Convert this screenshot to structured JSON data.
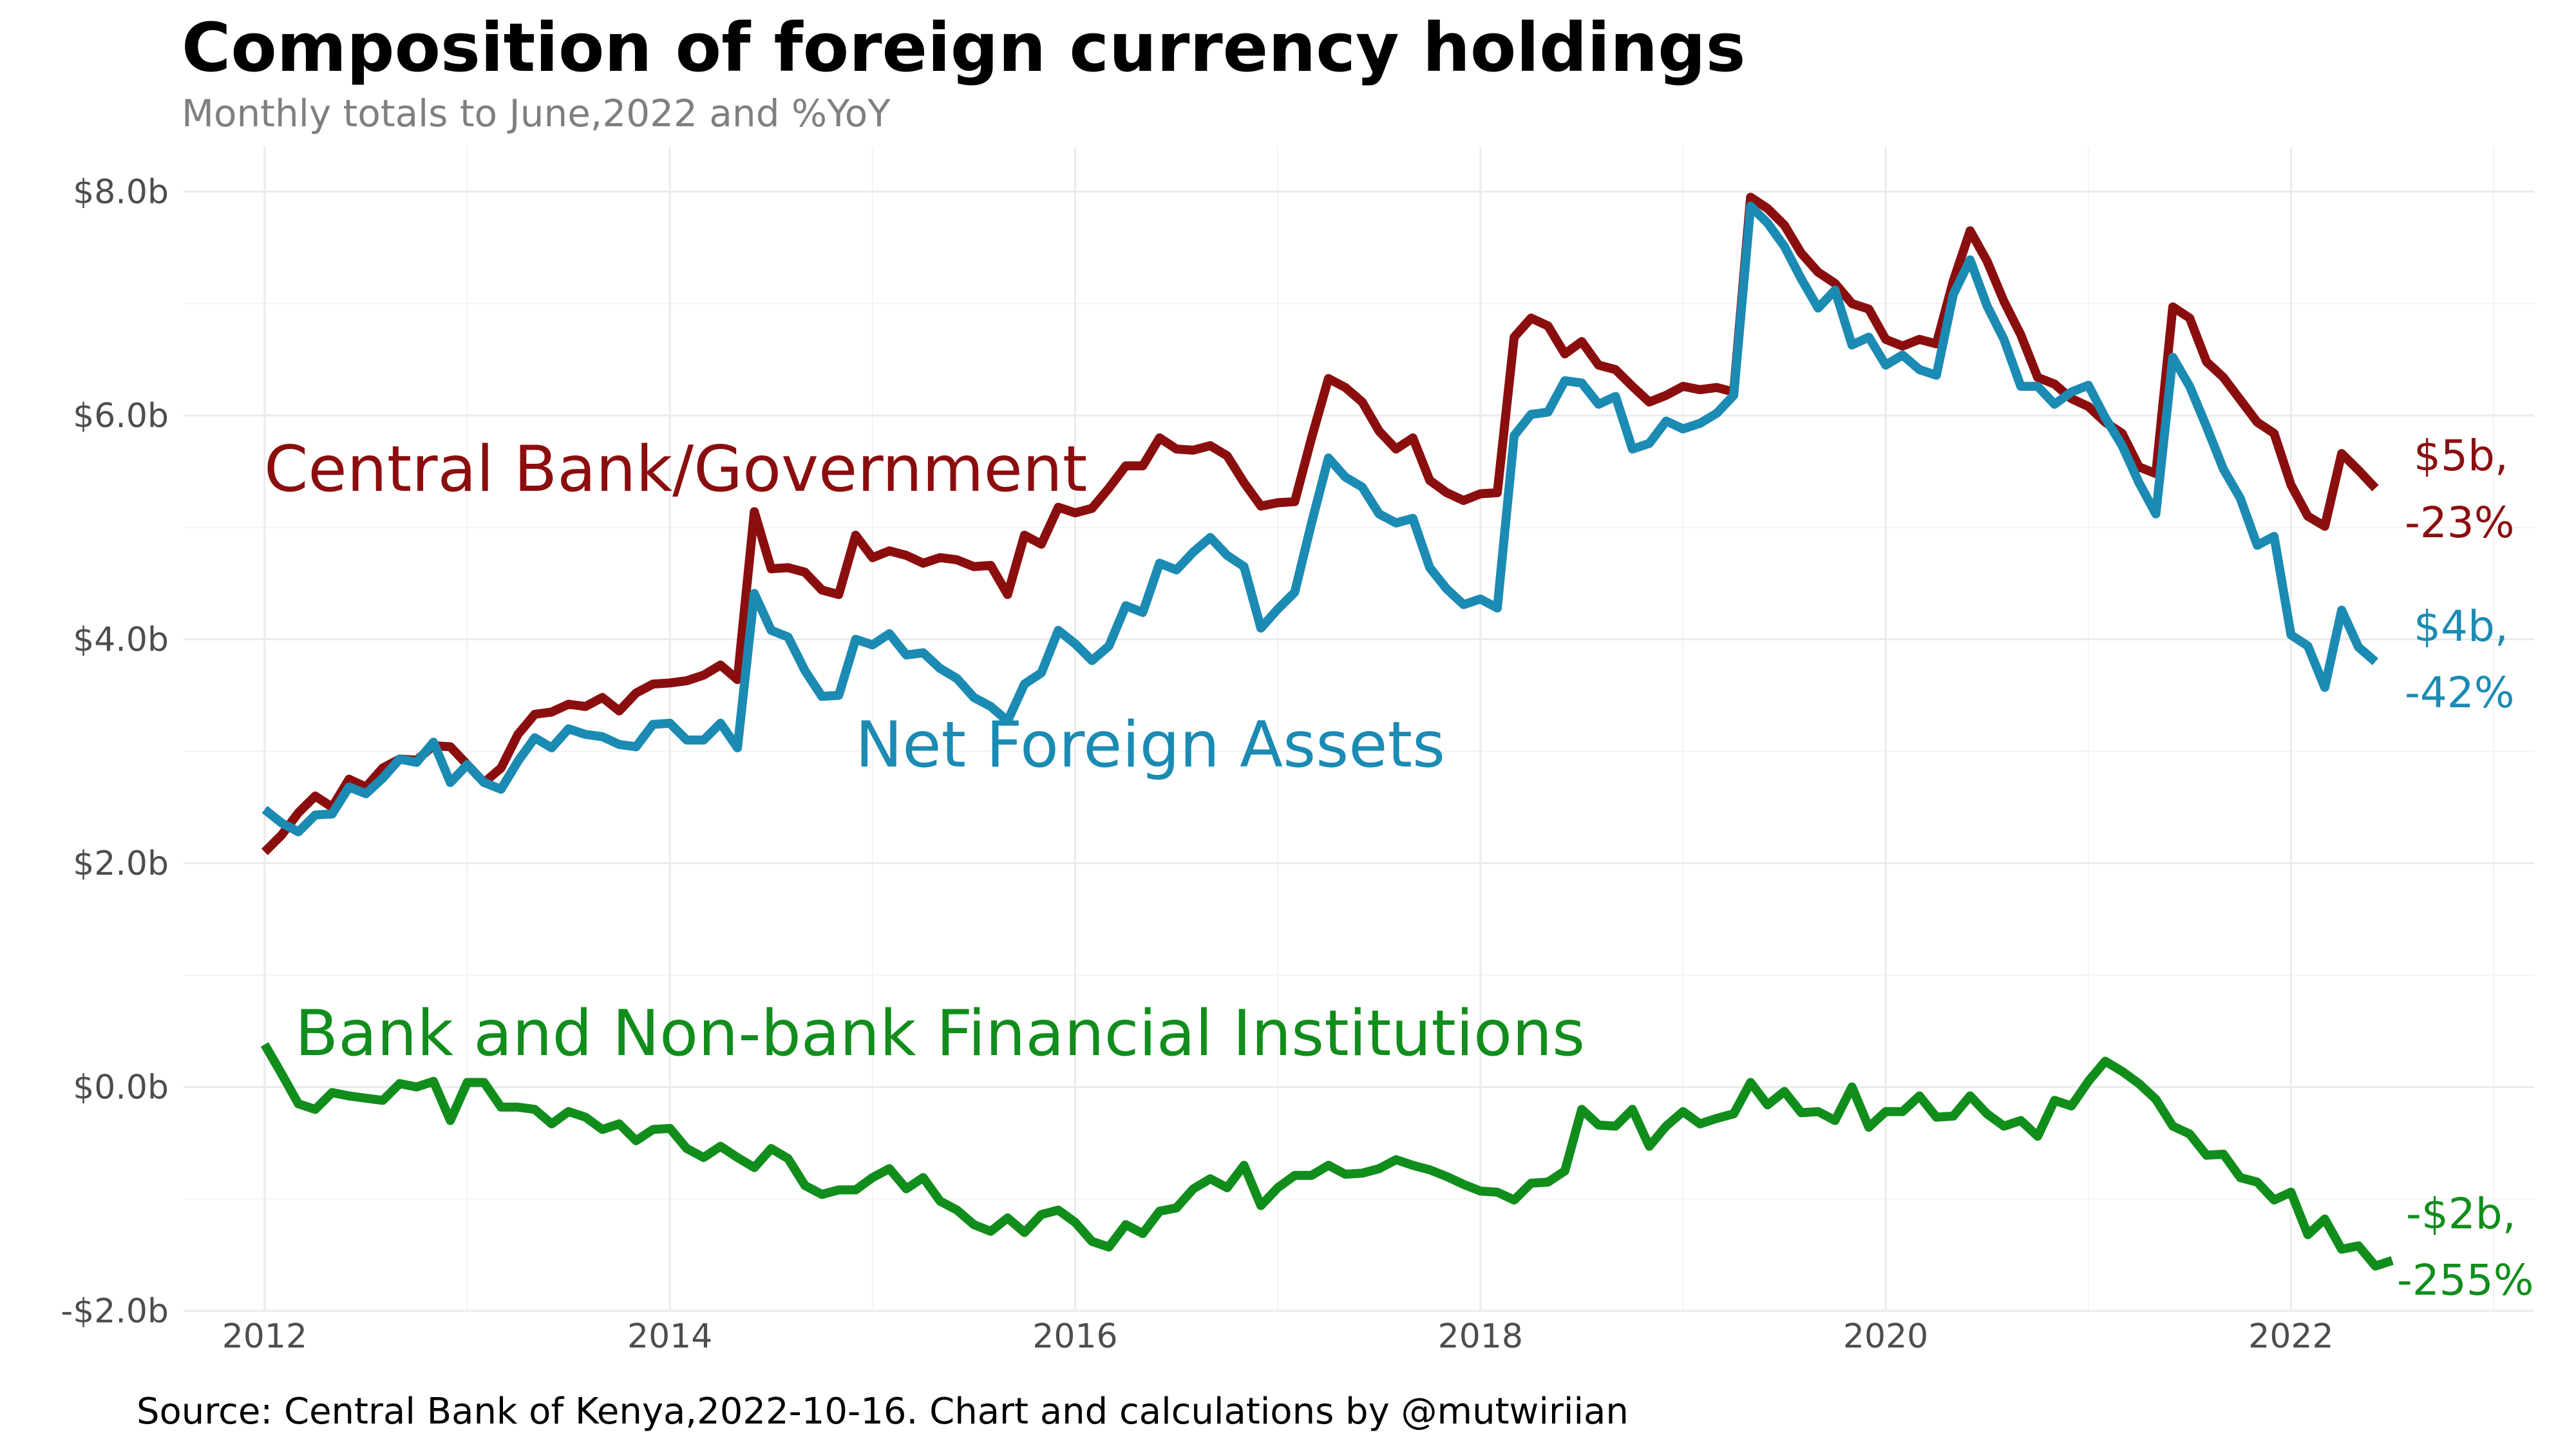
{
  "chart_data": {
    "type": "line",
    "title": "Composition of foreign currency holdings",
    "subtitle": "Monthly totals to June,2022 and %YoY",
    "caption": "Source: Central Bank of Kenya,2022-10-16. Chart and calculations by @mutwiriian",
    "xlabel": "",
    "ylabel": "",
    "xlim": [
      2011.6,
      2023.2
    ],
    "ylim": [
      -2.0,
      8.4
    ],
    "x_ticks": [
      2012,
      2014,
      2016,
      2018,
      2020,
      2022
    ],
    "x_tick_labels": [
      "2012",
      "2014",
      "2016",
      "2018",
      "2020",
      "2022"
    ],
    "y_ticks": [
      -2,
      0,
      2,
      4,
      6,
      8
    ],
    "y_tick_labels": [
      "-$2.0b",
      "$0.0b",
      "$2.0b",
      "$4.0b",
      "$6.0b",
      "$8.0b"
    ],
    "grid": true,
    "legend": "none (direct labels)",
    "x_start": 2012.0,
    "x_step_months": 1,
    "series": [
      {
        "name": "Central Bank/Government",
        "color": "#8b0e0e",
        "end_label": [
          "$5b,",
          "-23%"
        ],
        "values": [
          2.1,
          2.25,
          2.45,
          2.6,
          2.5,
          2.75,
          2.68,
          2.85,
          2.93,
          2.92,
          3.05,
          3.04,
          2.88,
          2.72,
          2.85,
          3.15,
          3.33,
          3.35,
          3.42,
          3.4,
          3.48,
          3.36,
          3.52,
          3.6,
          3.61,
          3.63,
          3.68,
          3.77,
          3.64,
          5.14,
          4.63,
          4.64,
          4.6,
          4.44,
          4.4,
          4.93,
          4.73,
          4.79,
          4.75,
          4.68,
          4.73,
          4.71,
          4.65,
          4.66,
          4.4,
          4.93,
          4.85,
          5.18,
          5.13,
          5.17,
          5.35,
          5.55,
          5.55,
          5.8,
          5.7,
          5.69,
          5.73,
          5.64,
          5.4,
          5.19,
          5.22,
          5.23,
          5.8,
          6.33,
          6.25,
          6.12,
          5.86,
          5.7,
          5.8,
          5.42,
          5.31,
          5.24,
          5.3,
          5.31,
          6.7,
          6.87,
          6.8,
          6.55,
          6.66,
          6.45,
          6.41,
          6.26,
          6.12,
          6.18,
          6.26,
          6.23,
          6.25,
          6.21,
          7.95,
          7.85,
          7.7,
          7.45,
          7.28,
          7.18,
          7.0,
          6.95,
          6.68,
          6.62,
          6.68,
          6.64,
          7.2,
          7.65,
          7.38,
          7.02,
          6.72,
          6.34,
          6.28,
          6.15,
          6.08,
          5.94,
          5.84,
          5.54,
          5.48,
          6.97,
          6.87,
          6.48,
          6.34,
          6.14,
          5.94,
          5.84,
          5.38,
          5.1,
          5.01,
          5.66,
          5.51,
          5.35
        ]
      },
      {
        "name": "Net Foreign Assets",
        "color": "#1b8bb3",
        "end_label": [
          "$4b,",
          "-42%"
        ],
        "values": [
          2.48,
          2.36,
          2.28,
          2.43,
          2.44,
          2.68,
          2.62,
          2.76,
          2.93,
          2.9,
          3.08,
          2.72,
          2.88,
          2.72,
          2.66,
          2.91,
          3.12,
          3.03,
          3.2,
          3.15,
          3.13,
          3.06,
          3.04,
          3.24,
          3.25,
          3.1,
          3.1,
          3.25,
          3.03,
          4.41,
          4.08,
          4.02,
          3.72,
          3.49,
          3.5,
          4.0,
          3.95,
          4.05,
          3.86,
          3.88,
          3.74,
          3.65,
          3.48,
          3.4,
          3.27,
          3.6,
          3.7,
          4.08,
          3.96,
          3.81,
          3.94,
          4.3,
          4.24,
          4.68,
          4.62,
          4.78,
          4.91,
          4.75,
          4.65,
          4.1,
          4.27,
          4.42,
          5.04,
          5.62,
          5.45,
          5.36,
          5.12,
          5.04,
          5.08,
          4.64,
          4.45,
          4.31,
          4.36,
          4.28,
          5.82,
          6.01,
          6.03,
          6.31,
          6.29,
          6.1,
          6.17,
          5.7,
          5.75,
          5.95,
          5.88,
          5.93,
          6.02,
          6.18,
          7.87,
          7.72,
          7.51,
          7.22,
          6.96,
          7.12,
          6.63,
          6.7,
          6.45,
          6.54,
          6.41,
          6.36,
          7.08,
          7.39,
          6.98,
          6.68,
          6.26,
          6.26,
          6.1,
          6.21,
          6.27,
          5.98,
          5.73,
          5.4,
          5.12,
          6.52,
          6.26,
          5.9,
          5.52,
          5.26,
          4.84,
          4.92,
          4.04,
          3.94,
          3.57,
          4.26,
          3.93,
          3.8
        ]
      },
      {
        "name": "Bank and Non-bank Financial Institutions",
        "color": "#118d1c",
        "end_label": [
          "-$2b,",
          "-255%"
        ],
        "values": [
          0.38,
          0.12,
          -0.15,
          -0.2,
          -0.05,
          -0.08,
          -0.1,
          -0.12,
          0.03,
          0.0,
          0.05,
          -0.3,
          0.04,
          0.04,
          -0.18,
          -0.18,
          -0.2,
          -0.33,
          -0.22,
          -0.27,
          -0.38,
          -0.33,
          -0.48,
          -0.38,
          -0.37,
          -0.55,
          -0.63,
          -0.53,
          -0.63,
          -0.72,
          -0.55,
          -0.64,
          -0.88,
          -0.96,
          -0.92,
          -0.92,
          -0.81,
          -0.73,
          -0.91,
          -0.81,
          -1.02,
          -1.1,
          -1.23,
          -1.29,
          -1.17,
          -1.3,
          -1.14,
          -1.1,
          -1.21,
          -1.38,
          -1.43,
          -1.23,
          -1.31,
          -1.11,
          -1.08,
          -0.91,
          -0.82,
          -0.9,
          -0.7,
          -1.06,
          -0.9,
          -0.79,
          -0.79,
          -0.7,
          -0.78,
          -0.77,
          -0.73,
          -0.65,
          -0.7,
          -0.74,
          -0.8,
          -0.87,
          -0.93,
          -0.94,
          -1.01,
          -0.86,
          -0.85,
          -0.75,
          -0.2,
          -0.34,
          -0.35,
          -0.2,
          -0.53,
          -0.35,
          -0.22,
          -0.33,
          -0.28,
          -0.24,
          0.04,
          -0.16,
          -0.04,
          -0.23,
          -0.22,
          -0.3,
          0.0,
          -0.36,
          -0.22,
          -0.22,
          -0.08,
          -0.27,
          -0.26,
          -0.08,
          -0.24,
          -0.35,
          -0.3,
          -0.44,
          -0.12,
          -0.17,
          0.05,
          0.23,
          0.14,
          0.03,
          -0.11,
          -0.35,
          -0.42,
          -0.61,
          -0.6,
          -0.81,
          -0.85,
          -1.01,
          -0.94,
          -1.32,
          -1.18,
          -1.45,
          -1.42,
          -1.6,
          -1.55
        ]
      }
    ],
    "series_labels": [
      {
        "text": "Central Bank/Government",
        "color": "#8b0e0e"
      },
      {
        "text": "Net Foreign Assets",
        "color": "#1b8bb3"
      },
      {
        "text": "Bank and Non-bank Financial Institutions",
        "color": "#118d1c"
      }
    ]
  }
}
